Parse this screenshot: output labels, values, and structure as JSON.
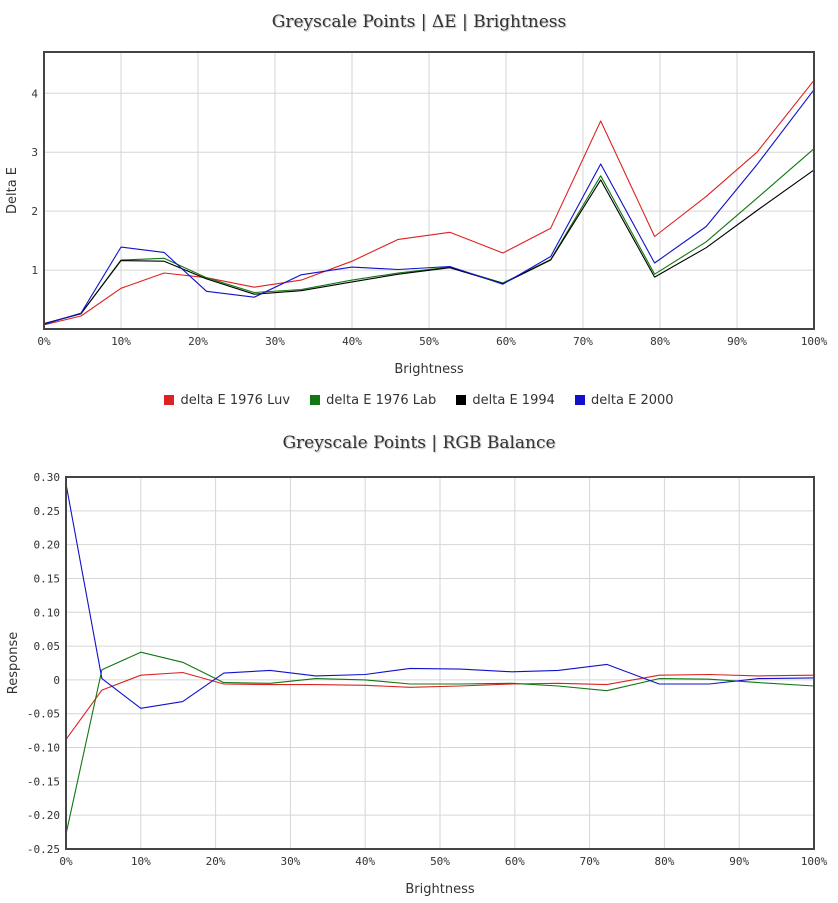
{
  "chart_data": [
    {
      "type": "line",
      "title": "Greyscale Points | ΔE | Brightness",
      "xlabel": "Brightness",
      "ylabel": "Delta E",
      "xlim": [
        0,
        100
      ],
      "ylim": [
        0,
        4.7
      ],
      "x_ticks": [
        "0%",
        "10%",
        "20%",
        "30%",
        "40%",
        "50%",
        "60%",
        "70%",
        "80%",
        "90%",
        "100%"
      ],
      "y_ticks": [
        "1",
        "2",
        "3",
        "4"
      ],
      "grid": true,
      "legend_position": "bottom",
      "x": [
        0,
        4.8,
        10,
        15.6,
        21.1,
        27.3,
        33.4,
        40,
        46,
        52.7,
        59.6,
        65.8,
        72.3,
        79.3,
        86,
        92.6,
        100
      ],
      "series": [
        {
          "name": "delta E 1976 Luv",
          "color": "#dd2222",
          "values": [
            0.07,
            0.22,
            0.69,
            0.95,
            0.87,
            0.71,
            0.83,
            1.15,
            1.52,
            1.64,
            1.29,
            1.71,
            3.53,
            1.57,
            2.25,
            3.0,
            4.22
          ]
        },
        {
          "name": "delta E 1976 Lab",
          "color": "#117711",
          "values": [
            0.09,
            0.26,
            1.17,
            1.2,
            0.87,
            0.62,
            0.67,
            0.83,
            0.95,
            1.05,
            0.78,
            1.18,
            2.6,
            0.93,
            1.48,
            2.22,
            3.06
          ]
        },
        {
          "name": "delta E 1994",
          "color": "#000000",
          "values": [
            0.09,
            0.26,
            1.16,
            1.15,
            0.85,
            0.59,
            0.65,
            0.8,
            0.93,
            1.04,
            0.77,
            1.17,
            2.53,
            0.88,
            1.38,
            2.01,
            2.7
          ]
        },
        {
          "name": "delta E 2000",
          "color": "#1111cc",
          "values": [
            0.08,
            0.27,
            1.39,
            1.3,
            0.64,
            0.54,
            0.92,
            1.05,
            1.01,
            1.06,
            0.76,
            1.23,
            2.8,
            1.12,
            1.74,
            2.79,
            4.06
          ]
        }
      ]
    },
    {
      "type": "line",
      "title": "Greyscale Points | RGB Balance",
      "xlabel": "Brightness",
      "ylabel": "Response",
      "xlim": [
        0,
        100
      ],
      "ylim": [
        -0.25,
        0.3
      ],
      "x_ticks": [
        "0%",
        "10%",
        "20%",
        "30%",
        "40%",
        "50%",
        "60%",
        "70%",
        "80%",
        "90%",
        "100%"
      ],
      "y_ticks": [
        "0.30",
        "0.25",
        "0.20",
        "0.15",
        "0.10",
        "0.05",
        "0",
        "-0.05",
        "-0.10",
        "-0.15",
        "-0.20",
        "-0.25"
      ],
      "grid": true,
      "x": [
        0,
        4.8,
        10,
        15.6,
        21.1,
        27.3,
        33.4,
        40,
        46,
        52.7,
        59.6,
        65.8,
        72.3,
        79.3,
        86,
        92.6,
        100
      ],
      "series": [
        {
          "color": "#dd2222",
          "values": [
            -0.088,
            -0.015,
            0.007,
            0.011,
            -0.006,
            -0.007,
            -0.007,
            -0.008,
            -0.011,
            -0.009,
            -0.006,
            -0.005,
            -0.007,
            0.007,
            0.008,
            0.006,
            0.007
          ]
        },
        {
          "color": "#117711",
          "values": [
            -0.228,
            0.015,
            0.041,
            0.026,
            -0.004,
            -0.005,
            0.002,
            0.0,
            -0.006,
            -0.006,
            -0.005,
            -0.009,
            -0.016,
            0.002,
            0.001,
            -0.004,
            -0.009
          ]
        },
        {
          "color": "#1111cc",
          "values": [
            0.29,
            0.002,
            -0.042,
            -0.032,
            0.01,
            0.014,
            0.006,
            0.008,
            0.017,
            0.016,
            0.012,
            0.014,
            0.023,
            -0.006,
            -0.006,
            0.002,
            0.003
          ]
        }
      ]
    }
  ]
}
